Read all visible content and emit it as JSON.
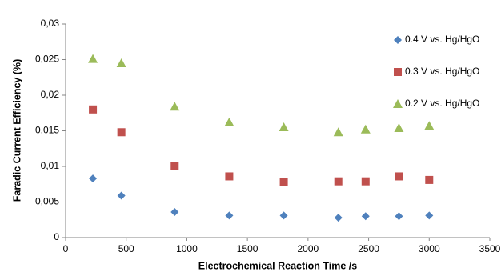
{
  "chart_data": {
    "type": "scatter",
    "x_label": "Electrochemical Reaction Time /s",
    "y_label": "Faradic Current Efficiency (%)",
    "x": [
      225,
      460,
      900,
      1350,
      1800,
      2250,
      2475,
      2750,
      3000
    ],
    "series": [
      {
        "name": "0.4 V vs. Hg/HgO",
        "color": "#4f81bd",
        "marker": "diamond",
        "values": [
          0.0083,
          0.0059,
          0.0036,
          0.0031,
          0.0031,
          0.0028,
          0.003,
          0.003,
          0.0031
        ]
      },
      {
        "name": "0.3 V vs. Hg/HgO",
        "color": "#c0504d",
        "marker": "square",
        "values": [
          0.018,
          0.0148,
          0.01,
          0.0086,
          0.0078,
          0.0079,
          0.0079,
          0.0086,
          0.0081
        ]
      },
      {
        "name": "0.2 V vs. Hg/HgO",
        "color": "#9bbb59",
        "marker": "triangle",
        "values": [
          0.0251,
          0.0245,
          0.0184,
          0.0162,
          0.0155,
          0.0148,
          0.0152,
          0.0154,
          0.0157
        ]
      }
    ],
    "xlim": [
      0,
      3500
    ],
    "xticks": [
      0,
      500,
      1000,
      1500,
      2000,
      2500,
      3000,
      3500
    ],
    "ylim": [
      0,
      0.03
    ],
    "yticks": [
      0,
      {
        "value": 0.005,
        "label": "0,005"
      },
      {
        "value": 0.01,
        "label": "0,01"
      },
      {
        "value": 0.015,
        "label": "0,015"
      },
      {
        "value": 0.02,
        "label": "0,02"
      },
      {
        "value": 0.025,
        "label": "0,025"
      },
      {
        "value": 0.03,
        "label": "0,03"
      }
    ],
    "grid": false,
    "legend": "right"
  }
}
